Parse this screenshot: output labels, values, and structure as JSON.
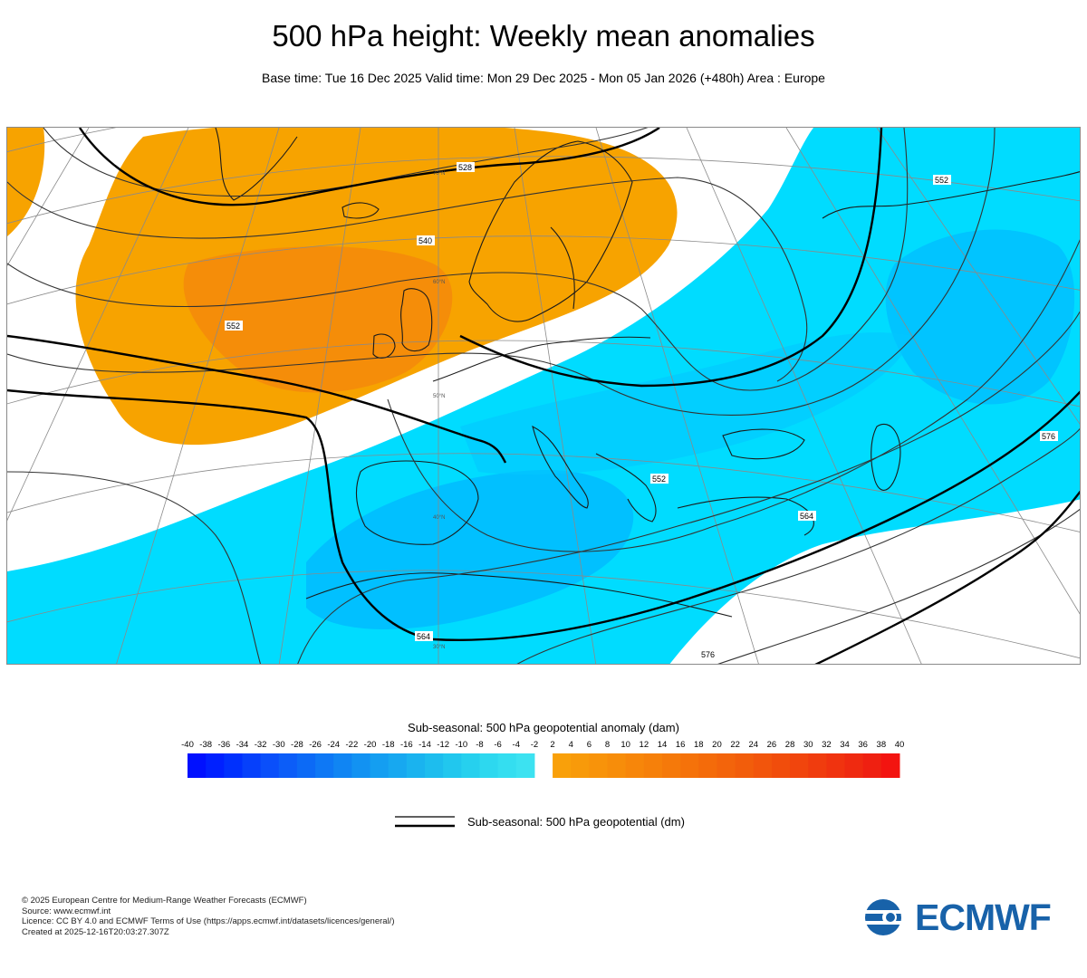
{
  "title": "500 hPa height: Weekly mean anomalies",
  "subtitle": "Base time: Tue 16 Dec 2025 Valid time: Mon 29 Dec 2025 - Mon 05 Jan 2026 (+480h) Area : Europe",
  "map": {
    "contour_labels": [
      "528",
      "540",
      "552",
      "564",
      "576",
      "552",
      "564",
      "576",
      "552"
    ],
    "lat_labels": [
      "60°N",
      "50°N",
      "40°N",
      "30°N",
      "70°N"
    ],
    "colors": {
      "positive_anomaly": "#f7a300",
      "positive_anomaly_strong": "#f48a0b",
      "negative_anomaly": "#00dcff",
      "negative_anomaly_strong": "#01b2ff",
      "coast": "#1a1a1a",
      "grid": "#808080"
    }
  },
  "colorbar": {
    "title": "Sub-seasonal: 500 hPa geopotential anomaly (dam)",
    "ticks": [
      "-40",
      "-38",
      "-36",
      "-34",
      "-32",
      "-30",
      "-28",
      "-26",
      "-24",
      "-22",
      "-20",
      "-18",
      "-16",
      "-14",
      "-12",
      "-10",
      "-8",
      "-6",
      "-4",
      "-2",
      "2",
      "4",
      "6",
      "8",
      "10",
      "12",
      "14",
      "16",
      "18",
      "20",
      "22",
      "24",
      "26",
      "28",
      "30",
      "32",
      "34",
      "36",
      "38",
      "40"
    ],
    "negative_colors": [
      "#0010ff",
      "#0020ff",
      "#0030fd",
      "#0640fb",
      "#0a4ffa",
      "#0c5df8",
      "#0c6af6",
      "#0e78f5",
      "#1085f3",
      "#1292f2",
      "#149ef1",
      "#17a8f0",
      "#1ab3ef",
      "#1dbdee",
      "#21c7ee",
      "#26d0ee",
      "#2dd8ef",
      "#34def0",
      "#3ce2f1"
    ],
    "positive_colors": [
      "#f9a00a",
      "#f89a0a",
      "#f8930a",
      "#f78d0a",
      "#f7860a",
      "#f6800a",
      "#f5790a",
      "#f5720a",
      "#f46b0a",
      "#f3640b",
      "#f25d0b",
      "#f2550c",
      "#f14d0c",
      "#f1450d",
      "#f03c0e",
      "#f0330f",
      "#ef2a10",
      "#ef2011",
      "#f31410"
    ]
  },
  "legend": {
    "line_label": "Sub-seasonal: 500 hPa geopotential (dm)"
  },
  "footer": {
    "lines": [
      "© 2025 European Centre for Medium-Range Weather Forecasts (ECMWF)",
      "Source: www.ecmwf.int",
      "Licence: CC BY 4.0 and ECMWF Terms of Use (https://apps.ecmwf.int/datasets/licences/general/)",
      "Created at 2025-12-16T20:03:27.307Z"
    ]
  },
  "logo": {
    "text": "ECMWF",
    "color": "#1862a9"
  }
}
